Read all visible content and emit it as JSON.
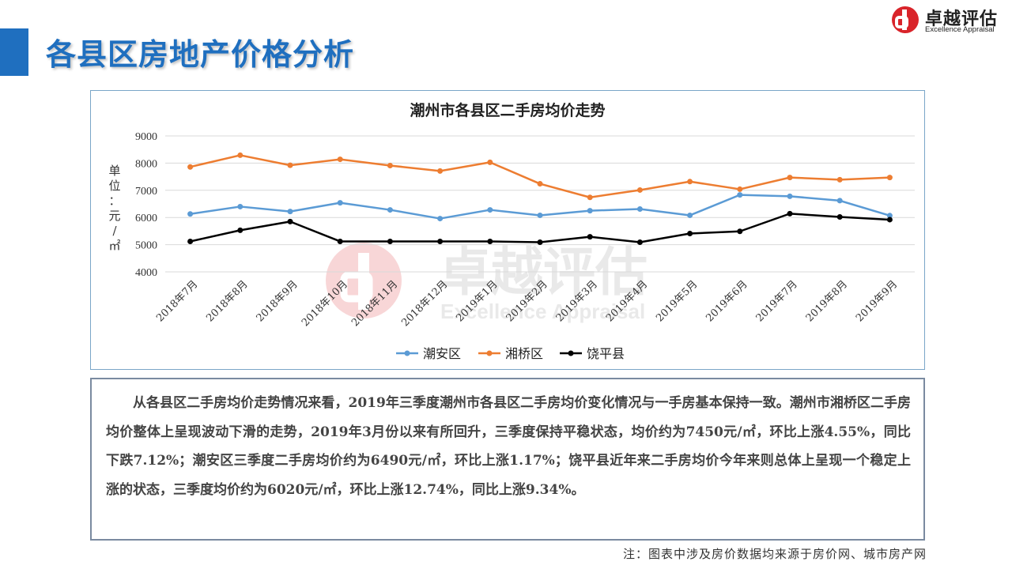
{
  "page": {
    "title": "各县区房地产价格分析",
    "logo_cn": "卓越评估",
    "logo_en": "Excellence Appraisal",
    "watermark_cn": "卓越评估",
    "watermark_en": "Excellence Appraisal",
    "paragraph": "从各县区二手房均价走势情况来看，2019年三季度潮州市各县区二手房均价变化情况与一手房基本保持一致。潮州市湘桥区二手房均价整体上呈现波动下滑的走势，2019年3月份以来有所回升，三季度保持平稳状态，均价约为7450元/㎡，环比上涨4.55%，同比下跌7.12%；潮安区三季度二手房均价约为6490元/㎡，环比上涨1.17%；饶平县近年来二手房均价今年来则总体上呈现一个稳定上涨的状态，三季度均价约为6020元/㎡，环比上涨12.74%，同比上涨9.34%。",
    "note": "注：图表中涉及房价数据均来源于房价网、城市房产网",
    "colors": {
      "accent": "#1f6fbf",
      "logo_red": "#d9242a"
    }
  },
  "chart_data": {
    "type": "line",
    "title": "潮州市各县区二手房均价走势",
    "ylabel": "单位：元/㎡",
    "ylim": [
      4000,
      9000
    ],
    "yticks": [
      4000,
      5000,
      6000,
      7000,
      8000,
      9000
    ],
    "grid": true,
    "legend_position": "bottom",
    "categories": [
      "2018年7月",
      "2018年8月",
      "2018年9月",
      "2018年10月",
      "2018年11月",
      "2018年12月",
      "2019年1月",
      "2019年2月",
      "2019年3月",
      "2019年4月",
      "2019年5月",
      "2019年6月",
      "2019年7月",
      "2019年8月",
      "2019年9月"
    ],
    "series": [
      {
        "name": "潮安区",
        "color": "#5b9bd5",
        "values": [
          6130,
          6400,
          6220,
          6540,
          6280,
          5960,
          6280,
          6080,
          6250,
          6310,
          6080,
          6830,
          6780,
          6620,
          6070
        ]
      },
      {
        "name": "湘桥区",
        "color": "#ed7d31",
        "values": [
          7860,
          8290,
          7920,
          8140,
          7910,
          7710,
          8030,
          7240,
          6740,
          7010,
          7320,
          7040,
          7470,
          7390,
          7470
        ]
      },
      {
        "name": "饶平县",
        "color": "#000000",
        "values": [
          5120,
          5530,
          5850,
          5120,
          5120,
          5120,
          5120,
          5090,
          5290,
          5090,
          5410,
          5490,
          6140,
          6020,
          5920
        ]
      }
    ]
  }
}
